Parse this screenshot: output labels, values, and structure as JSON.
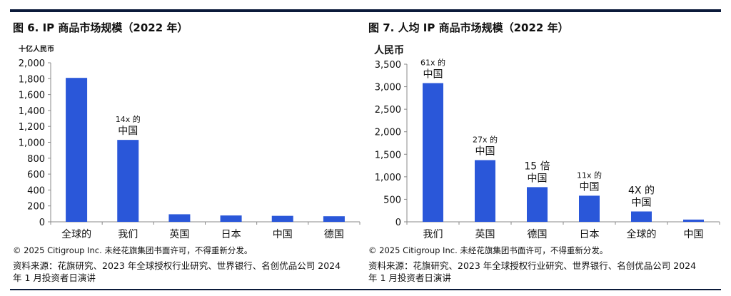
{
  "colors": {
    "bar": "#2a57d9",
    "rule": "#0b1a3a",
    "axis": "#888888"
  },
  "left": {
    "title": "图 6. IP 商品市场规模（2022 年）",
    "copyright": "© 2025 Citigroup Inc. 未经花旗集团书面许可，不得重新分发。",
    "source": "资料来源：花旗研究、2023 年全球授权行业研究、世界银行、名创优品公司 2024 年 1 月投资者日演讲"
  },
  "right": {
    "title": "图 7. 人均 IP 商品市场规模（2022 年）",
    "copyright": "© 2025 Citigroup Inc. 未经花旗集团书面许可，不得重新分发。",
    "source": "资料来源：花旗研究、2023 年全球授权行业研究、世界银行、名创优品公司 2024 年 1 月投资者日演讲"
  },
  "chart_data": [
    {
      "type": "bar",
      "title": "图 6. IP 商品市场规模（2022 年）",
      "ylabel": "十亿人民币",
      "categories": [
        "全球的",
        "我们",
        "英国",
        "日本",
        "中国",
        "德国"
      ],
      "values": [
        1810,
        1030,
        95,
        80,
        75,
        70
      ],
      "ylim": [
        0,
        2000
      ],
      "yticks": [
        0,
        200,
        400,
        600,
        800,
        1000,
        1200,
        1400,
        1600,
        1800,
        2000
      ],
      "ytick_labels": [
        "0",
        "200",
        "400",
        "600",
        "800",
        "1,000",
        "1,200",
        "1,400",
        "1,600",
        "1,800",
        "2,000"
      ],
      "annotations": [
        {
          "category_index": 1,
          "lines": [
            "14x 的",
            "中国"
          ]
        }
      ],
      "grid": false
    },
    {
      "type": "bar",
      "title": "图 7. 人均 IP 商品市场规模（2022 年）",
      "ylabel": "人民币",
      "categories": [
        "我们",
        "英国",
        "德国",
        "日本",
        "全球的",
        "中国"
      ],
      "values": [
        3080,
        1370,
        770,
        580,
        230,
        50
      ],
      "ylim": [
        0,
        3500
      ],
      "yticks": [
        0,
        500,
        1000,
        1500,
        2000,
        2500,
        3000,
        3500
      ],
      "ytick_labels": [
        "0",
        "500",
        "1,000",
        "1,500",
        "2,000",
        "2,500",
        "3,000",
        "3,500"
      ],
      "annotations": [
        {
          "category_index": 0,
          "lines": [
            "61x 的",
            "中国"
          ]
        },
        {
          "category_index": 1,
          "lines": [
            "27x 的",
            "中国"
          ]
        },
        {
          "category_index": 2,
          "lines": [
            "15 倍",
            "中国"
          ]
        },
        {
          "category_index": 3,
          "lines": [
            "11x 的",
            "中国"
          ]
        },
        {
          "category_index": 4,
          "lines": [
            "4X 的",
            "中国"
          ]
        }
      ],
      "grid": false
    }
  ]
}
